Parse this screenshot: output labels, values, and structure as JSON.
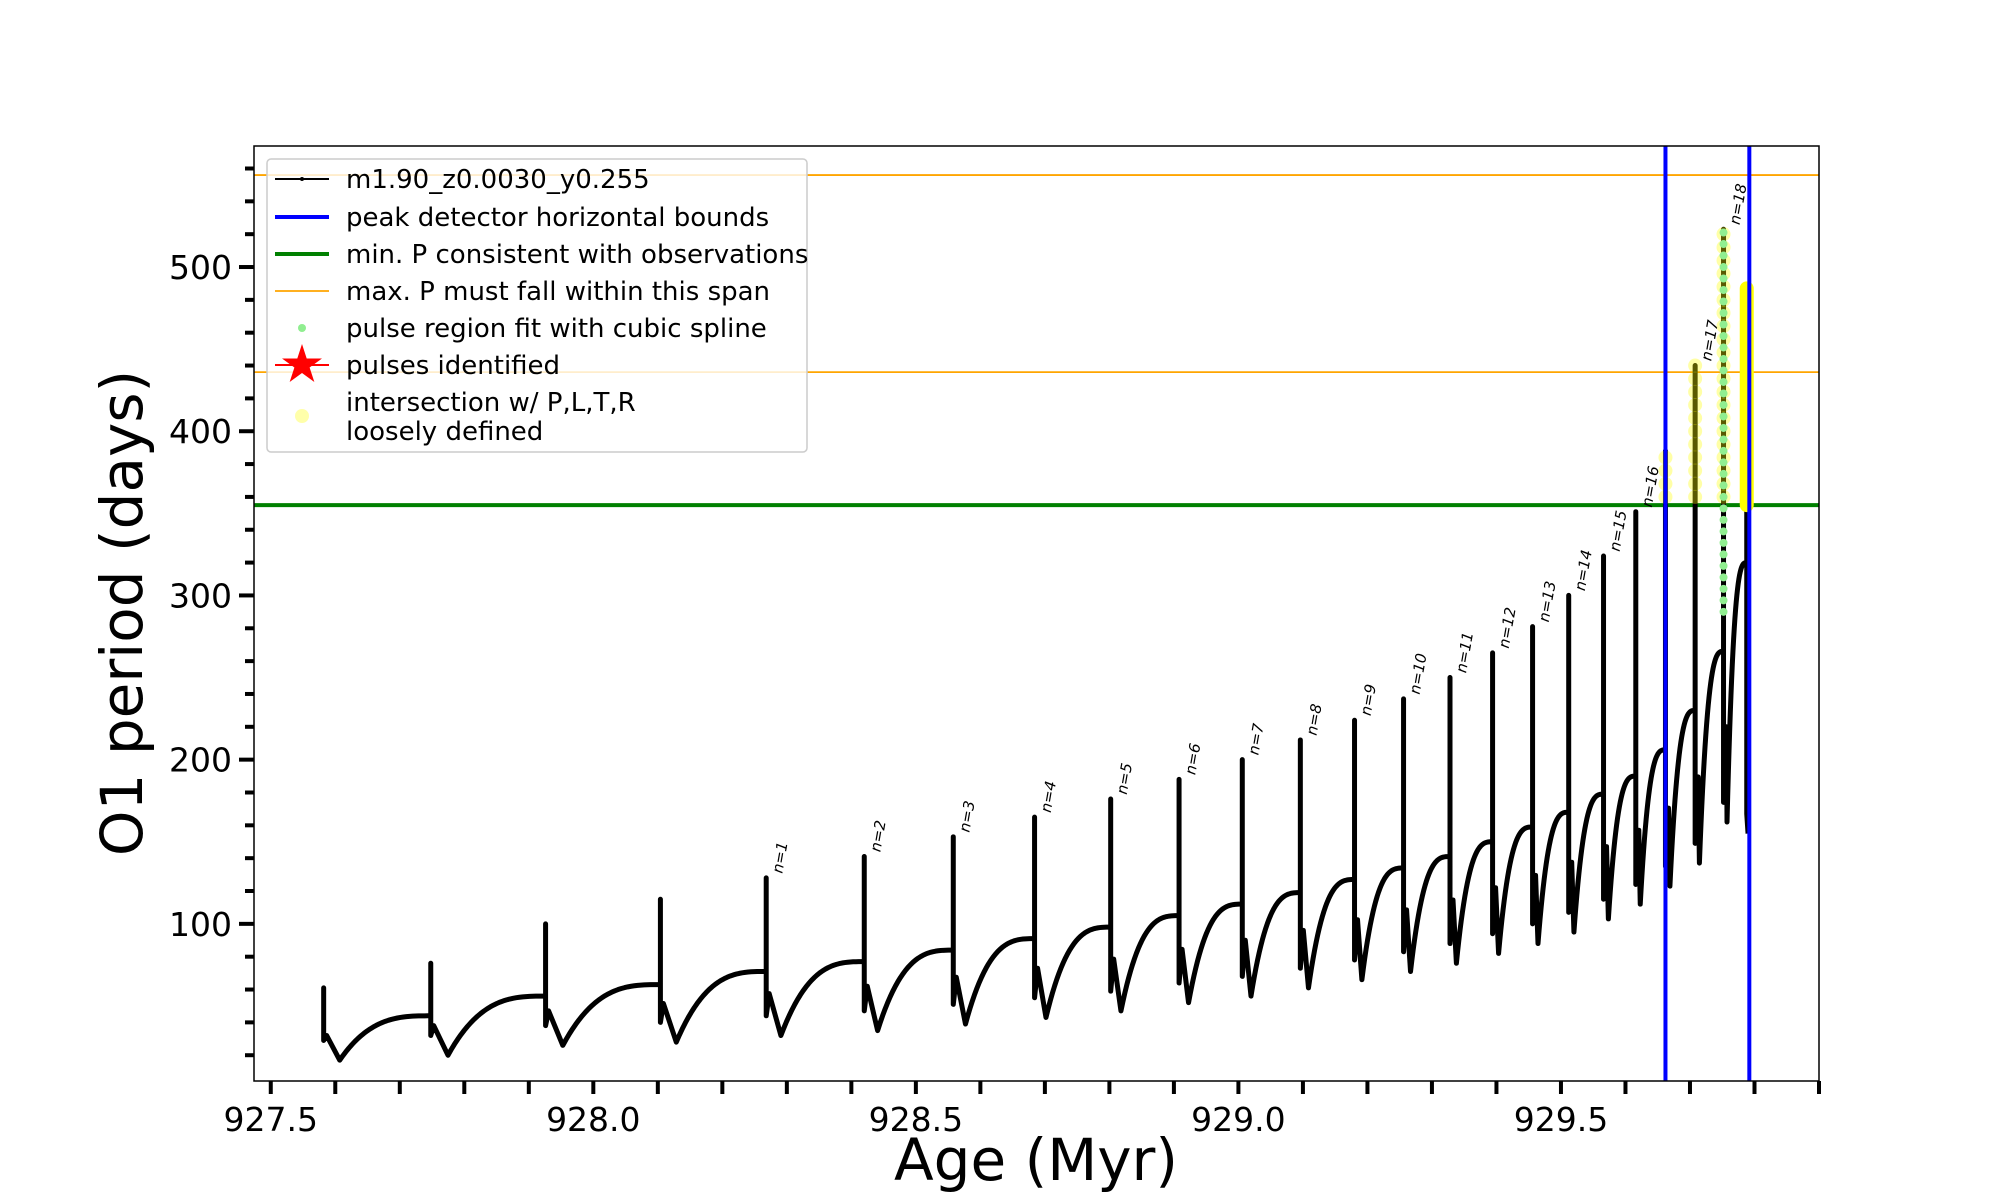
{
  "chart_data": {
    "type": "line",
    "xlabel": "Age (Myr)",
    "ylabel": "O1 period (days)",
    "xlim": [
      927.474,
      929.9
    ],
    "ylim": [
      4.3,
      573.7
    ],
    "x_ticks": [
      "927.5",
      "928.0",
      "928.5",
      "929.0",
      "929.5"
    ],
    "x_tick_values": [
      927.5,
      928.0,
      928.5,
      929.0,
      929.5
    ],
    "y_ticks": [
      "100",
      "200",
      "300",
      "400",
      "500"
    ],
    "y_tick_values": [
      100,
      200,
      300,
      400,
      500
    ],
    "grid": false,
    "legend_placement": "upper-left",
    "legend": [
      {
        "label": "m1.90_z0.0030_y0.255",
        "kind": "line-marker",
        "color": "#000000"
      },
      {
        "label": "peak detector horizontal bounds",
        "kind": "line",
        "color": "#0000ff"
      },
      {
        "label": "min. P consistent with observations",
        "kind": "line",
        "color": "#008000"
      },
      {
        "label": "max. P must fall within this span",
        "kind": "thin-line",
        "color": "#ffa500"
      },
      {
        "label": "pulse region fit with cubic spline",
        "kind": "dot",
        "color": "#90ee90"
      },
      {
        "label": "pulses identified",
        "kind": "star",
        "color": "#ff0000"
      },
      {
        "label": "intersection w/ P,L,T,R",
        "label2": "loosely defined",
        "kind": "circle",
        "color": "#ffffaa"
      }
    ],
    "track_start": {
      "age": 927.582,
      "period": 35
    },
    "pulses": [
      {
        "age": 927.582,
        "plateau": 35,
        "peak": 61,
        "dip": 17,
        "label": null
      },
      {
        "age": 927.748,
        "plateau": 44,
        "peak": 76,
        "dip": 20,
        "label": null
      },
      {
        "age": 927.926,
        "plateau": 56,
        "peak": 100,
        "dip": 26,
        "label": null
      },
      {
        "age": 928.104,
        "plateau": 63,
        "peak": 115,
        "dip": 28,
        "label": null
      },
      {
        "age": 928.268,
        "plateau": 71,
        "peak": 128,
        "dip": 32,
        "label": "n=1"
      },
      {
        "age": 928.42,
        "plateau": 77,
        "peak": 141,
        "dip": 35,
        "label": "n=2"
      },
      {
        "age": 928.558,
        "plateau": 84,
        "peak": 153,
        "dip": 39,
        "label": "n=3"
      },
      {
        "age": 928.684,
        "plateau": 91,
        "peak": 165,
        "dip": 43,
        "label": "n=4"
      },
      {
        "age": 928.802,
        "plateau": 98,
        "peak": 176,
        "dip": 47,
        "label": "n=5"
      },
      {
        "age": 928.908,
        "plateau": 105,
        "peak": 188,
        "dip": 52,
        "label": "n=6"
      },
      {
        "age": 929.006,
        "plateau": 112,
        "peak": 200,
        "dip": 56,
        "label": "n=7"
      },
      {
        "age": 929.096,
        "plateau": 119,
        "peak": 212,
        "dip": 61,
        "label": "n=8"
      },
      {
        "age": 929.18,
        "plateau": 127,
        "peak": 224,
        "dip": 66,
        "label": "n=9"
      },
      {
        "age": 929.256,
        "plateau": 134,
        "peak": 237,
        "dip": 71,
        "label": "n=10"
      },
      {
        "age": 929.328,
        "plateau": 141,
        "peak": 250,
        "dip": 76,
        "label": "n=11"
      },
      {
        "age": 929.394,
        "plateau": 150,
        "peak": 265,
        "dip": 82,
        "label": "n=12"
      },
      {
        "age": 929.456,
        "plateau": 159,
        "peak": 281,
        "dip": 88,
        "label": "n=13"
      },
      {
        "age": 929.512,
        "plateau": 168,
        "peak": 300,
        "dip": 95,
        "label": "n=14"
      },
      {
        "age": 929.566,
        "plateau": 179,
        "peak": 324,
        "dip": 103,
        "label": "n=15"
      },
      {
        "age": 929.616,
        "plateau": 190,
        "peak": 351,
        "dip": 112,
        "label": "n=16"
      },
      {
        "age": 929.662,
        "plateau": 206,
        "peak": 388,
        "dip": 123,
        "label": null,
        "intersection": true
      },
      {
        "age": 929.708,
        "plateau": 230,
        "peak": 440,
        "dip": 137,
        "label": "n=17",
        "intersection": true
      },
      {
        "age": 929.752,
        "plateau": 266,
        "peak": 523,
        "dip": 162,
        "label": "n=18",
        "intersection": true,
        "spline_from": 290
      },
      {
        "age": 929.788,
        "plateau": 320,
        "peak": 487,
        "dip": 155,
        "label": null,
        "intersection": true,
        "final": true
      }
    ],
    "peak_detector_bounds": [
      929.662,
      929.792
    ],
    "min_P_observed": 355,
    "max_P_span": [
      436,
      556
    ],
    "colors": {
      "track": "#000000",
      "bounds": "#0000ff",
      "minP": "#008000",
      "maxP": "#ffa500",
      "spline": "#90ee90",
      "intersection": "#ffff00"
    }
  }
}
